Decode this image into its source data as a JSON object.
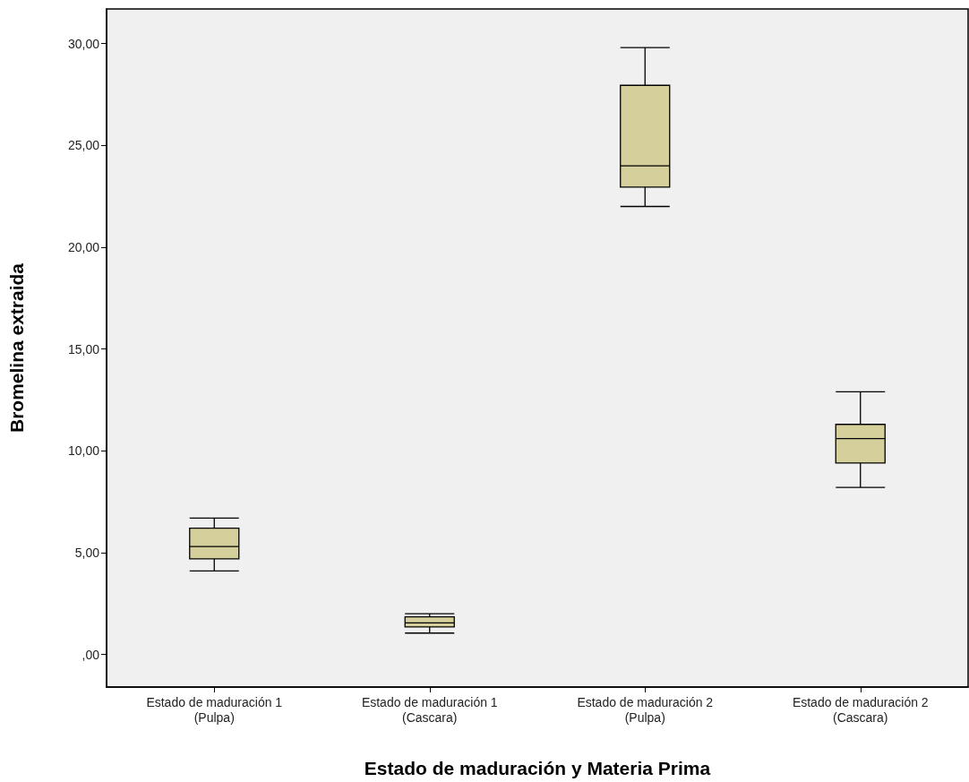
{
  "chart_data": {
    "type": "box",
    "xlabel": "Estado de maduración y Materia Prima",
    "ylabel": "Bromelina extraida",
    "categories": [
      "Estado de maduración 1\n(Pulpa)",
      "Estado de maduración 1\n(Cascara)",
      "Estado de maduración 2\n(Pulpa)",
      "Estado de maduración 2\n(Cascara)"
    ],
    "series": [
      {
        "color": "#d4cf9b",
        "boxes": [
          {
            "low": 4.1,
            "q1": 4.7,
            "median": 5.3,
            "q3": 6.2,
            "high": 6.7
          },
          {
            "low": 1.05,
            "q1": 1.35,
            "median": 1.55,
            "q3": 1.85,
            "high": 2.0
          },
          {
            "low": 22.0,
            "q1": 22.95,
            "median": 24.0,
            "q3": 27.95,
            "high": 29.8
          },
          {
            "low": 8.2,
            "q1": 9.4,
            "median": 10.6,
            "q3": 11.3,
            "high": 12.9
          }
        ]
      }
    ],
    "ylim": [
      -1.6,
      31.7
    ],
    "yticks": [
      {
        "value": 0,
        "label": ",00"
      },
      {
        "value": 5,
        "label": "5,00"
      },
      {
        "value": 10,
        "label": "10,00"
      },
      {
        "value": 15,
        "label": "15,00"
      },
      {
        "value": 20,
        "label": "20,00"
      },
      {
        "value": 25,
        "label": "25,00"
      },
      {
        "value": 30,
        "label": "30,00"
      }
    ],
    "grid": false
  }
}
